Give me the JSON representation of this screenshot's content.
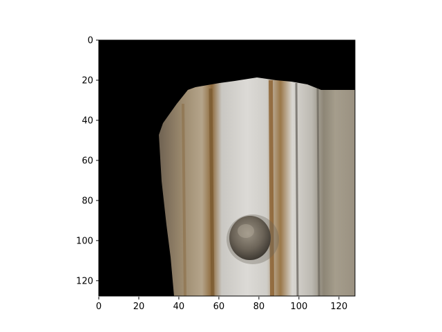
{
  "image": {
    "description_kind": "masked-photo",
    "subject": "weathered-wooden-door-with-round-knob",
    "mask_color": "#000000",
    "content_colors": [
      "#b8b6ae",
      "#8a7355",
      "#a07a45",
      "#d8d6d2",
      "#5f5a51"
    ],
    "pixel_extent": {
      "x": [
        0,
        128
      ],
      "y": [
        0,
        128
      ]
    }
  },
  "axes": {
    "x_ticks": [
      "0",
      "20",
      "40",
      "60",
      "80",
      "100",
      "120"
    ],
    "y_ticks": [
      "0",
      "20",
      "40",
      "60",
      "80",
      "100",
      "120"
    ],
    "x_tick_values": [
      0,
      20,
      40,
      60,
      80,
      100,
      120
    ],
    "y_tick_values": [
      0,
      20,
      40,
      60,
      80,
      100,
      120
    ],
    "xlim": [
      0,
      128
    ],
    "ylim": [
      128,
      0
    ],
    "grid": false
  }
}
